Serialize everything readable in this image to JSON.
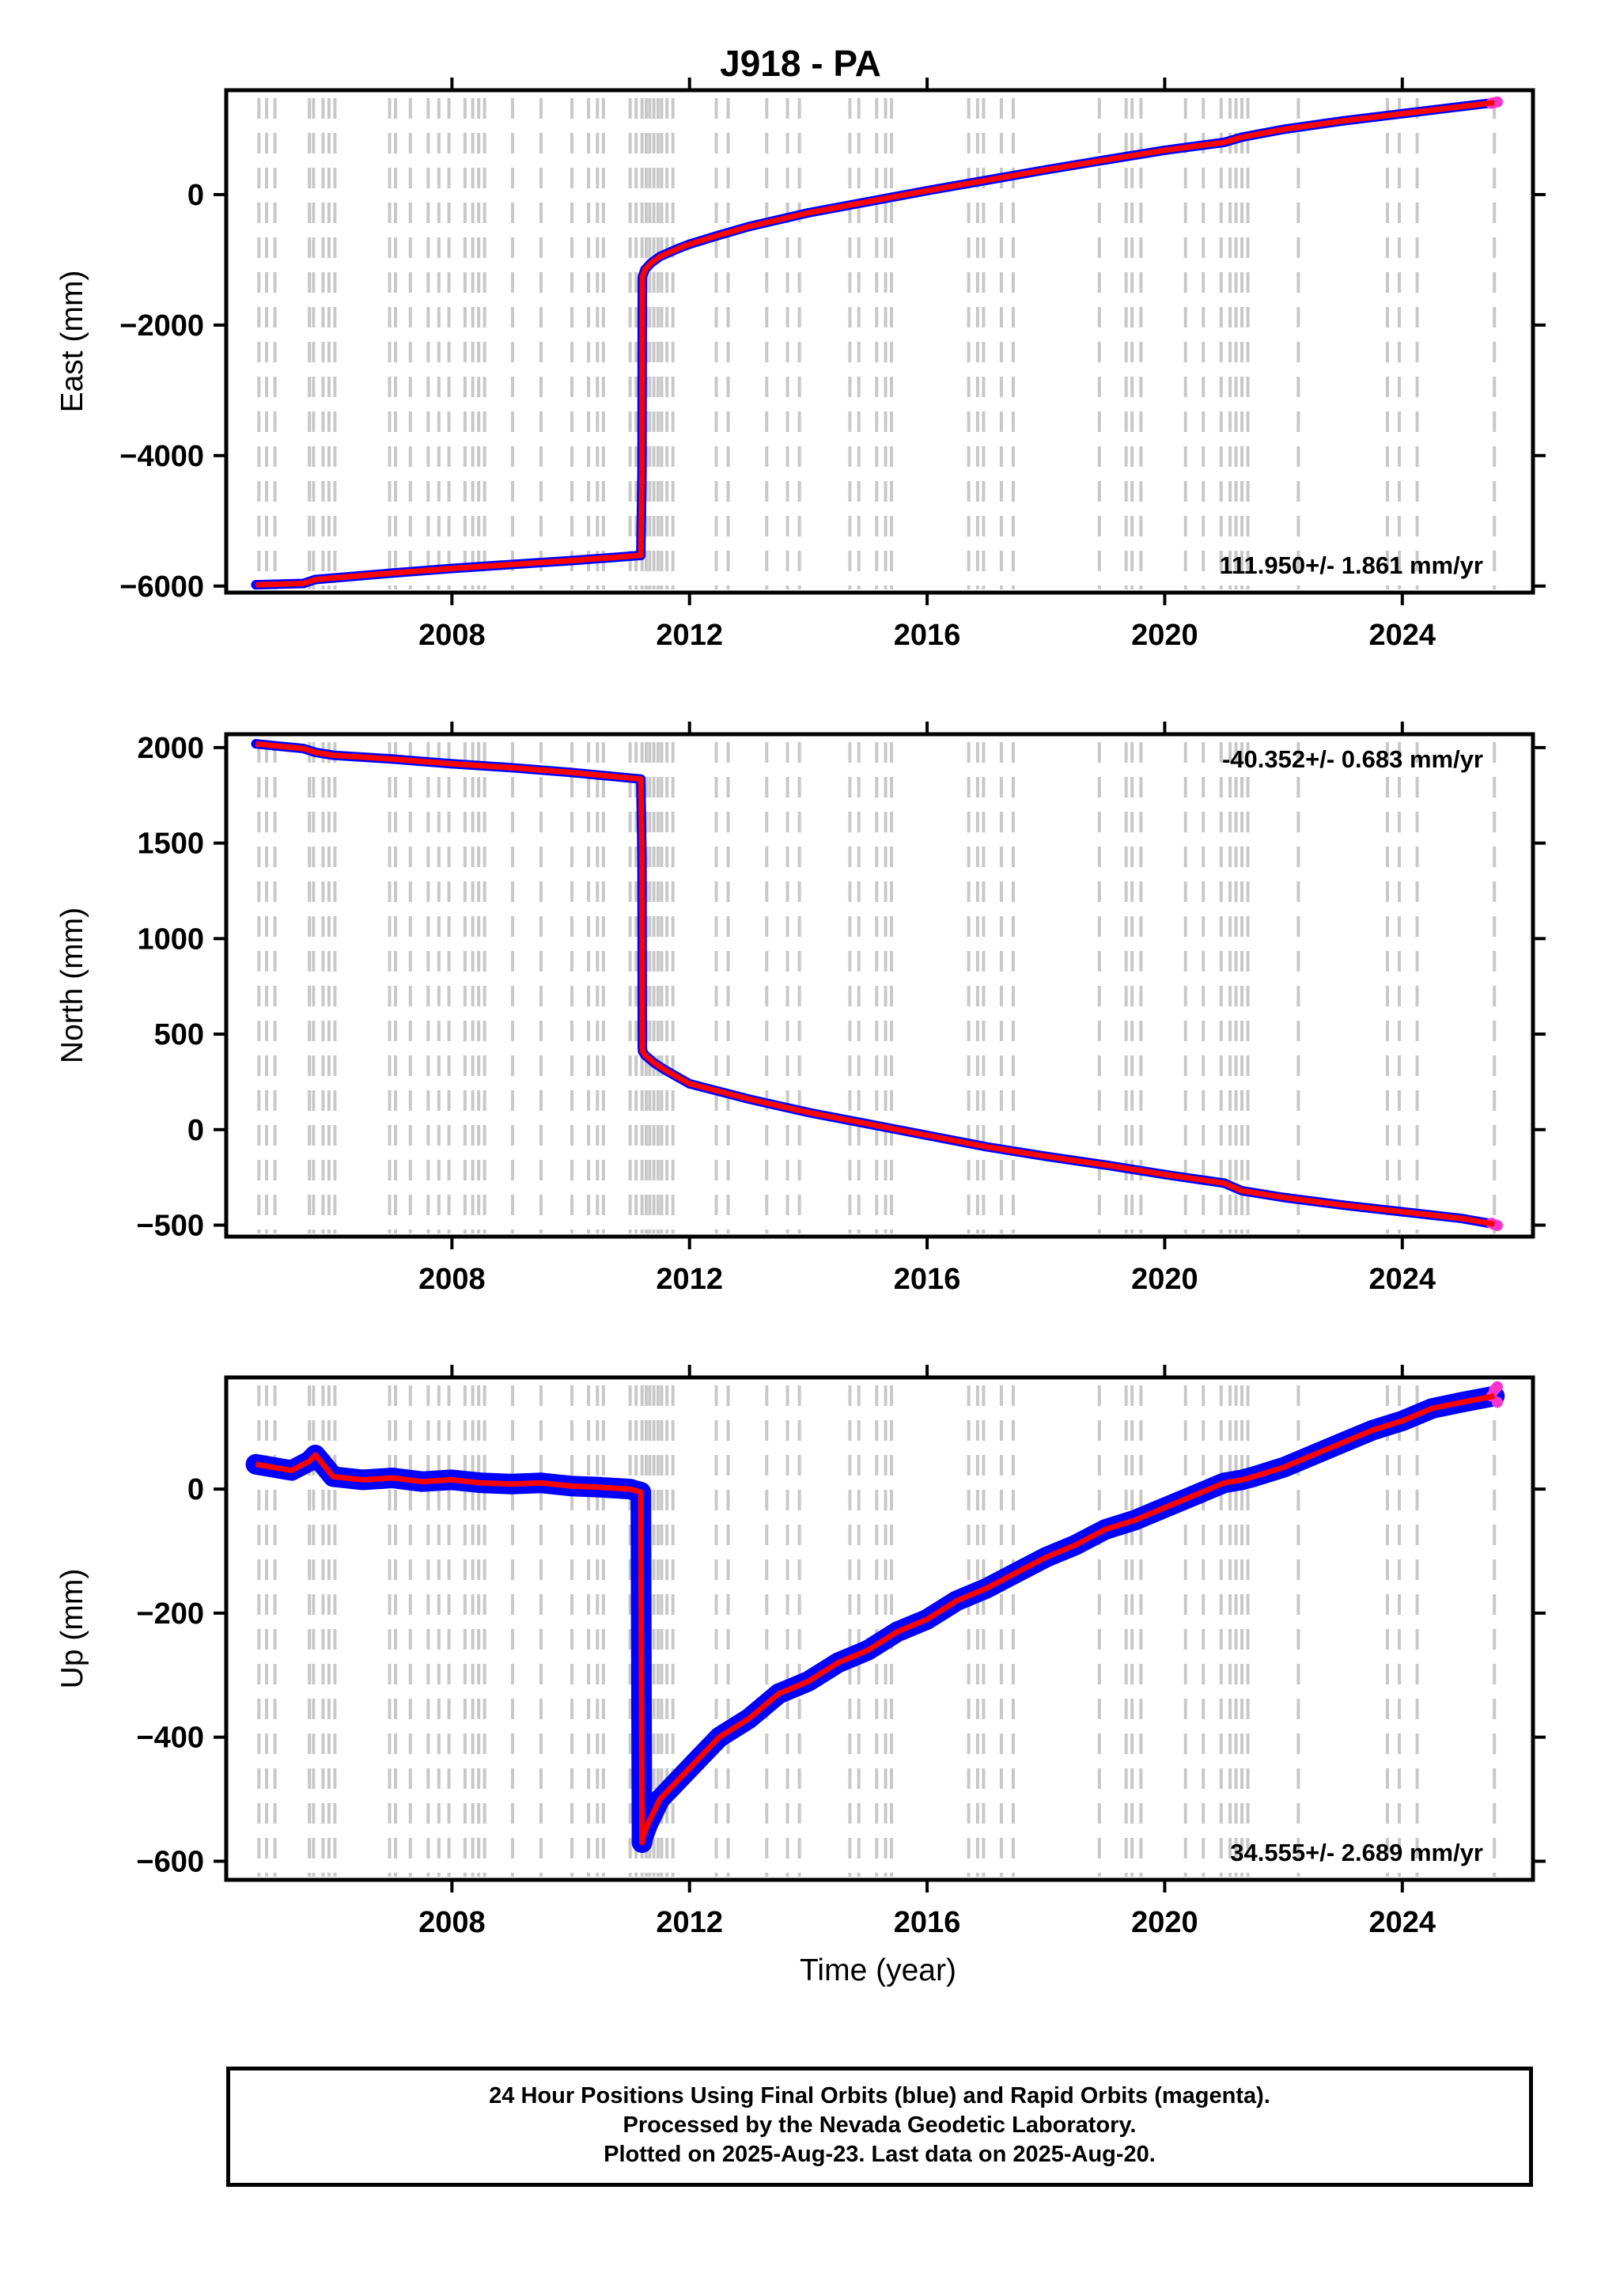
{
  "title": "J918 - PA",
  "xlabel": "Time (year)",
  "caption": {
    "line1": "24 Hour Positions Using Final Orbits (blue) and Rapid Orbits (magenta).",
    "line2": "Processed by the Nevada Geodetic Laboratory.",
    "line3": "Plotted on 2025-Aug-23. Last data on 2025-Aug-20."
  },
  "colors": {
    "final": "#0000ff",
    "rapid": "#ff33cc",
    "model": "#ff0000",
    "event_lines": "#c8c8c8",
    "axis": "#000000"
  },
  "chart_data": [
    {
      "type": "scatter",
      "panel": "east",
      "ylabel": "East (mm)",
      "xlim": [
        2004.2,
        2026.2
      ],
      "ylim": [
        -6100,
        1600
      ],
      "xticks": [
        2008,
        2012,
        2016,
        2020,
        2024
      ],
      "yticks": [
        -6000,
        -4000,
        -2000,
        0
      ],
      "ytick_labels": [
        "−6000",
        "−4000",
        "−2000",
        "0"
      ],
      "rate_label": "111.950+/- 1.861 mm/yr",
      "rate_label_position": "bottom-right",
      "series": [
        {
          "name": "Final Orbits",
          "color": "blue",
          "x": [
            2004.7,
            2005.5,
            2005.7,
            2007.0,
            2008.0,
            2009.0,
            2010.0,
            2011.18,
            2011.2,
            2011.205,
            2011.21,
            2011.25,
            2011.35,
            2011.5,
            2011.8,
            2012.0,
            2012.5,
            2013.0,
            2014.0,
            2015.0,
            2016.0,
            2017.0,
            2018.0,
            2019.0,
            2020.0,
            2021.0,
            2021.3,
            2022.0,
            2023.0,
            2024.0,
            2025.0,
            2025.55
          ],
          "y": [
            -5980,
            -5960,
            -5900,
            -5800,
            -5730,
            -5670,
            -5610,
            -5530,
            -4250,
            -1300,
            -1250,
            -1150,
            -1050,
            -950,
            -830,
            -760,
            -620,
            -490,
            -280,
            -110,
            60,
            220,
            380,
            530,
            680,
            800,
            880,
            1000,
            1130,
            1240,
            1350,
            1410
          ]
        },
        {
          "name": "Rapid Orbits",
          "color": "magenta",
          "x": [
            2025.5,
            2025.55,
            2025.6
          ],
          "y": [
            1400,
            1410,
            1420
          ]
        }
      ]
    },
    {
      "type": "scatter",
      "panel": "north",
      "ylabel": "North (mm)",
      "xlim": [
        2004.2,
        2026.2
      ],
      "ylim": [
        -560,
        2070
      ],
      "xticks": [
        2008,
        2012,
        2016,
        2020,
        2024
      ],
      "yticks": [
        -500,
        0,
        500,
        1000,
        1500,
        2000
      ],
      "ytick_labels": [
        "−500",
        "0",
        "500",
        "1000",
        "1500",
        "2000"
      ],
      "rate_label": "-40.352+/- 0.683 mm/yr",
      "rate_label_position": "top-right",
      "series": [
        {
          "name": "Final Orbits",
          "color": "blue",
          "x": [
            2004.7,
            2005.0,
            2005.5,
            2005.7,
            2006.0,
            2007.0,
            2008.0,
            2009.0,
            2010.0,
            2011.18,
            2011.2,
            2011.205,
            2011.21,
            2011.25,
            2011.4,
            2011.6,
            2011.8,
            2012.0,
            2012.5,
            2013.0,
            2014.0,
            2015.0,
            2016.0,
            2017.0,
            2018.0,
            2019.0,
            2020.0,
            2021.0,
            2021.3,
            2022.0,
            2023.0,
            2024.0,
            2025.0,
            2025.55
          ],
          "y": [
            2020,
            2010,
            1995,
            1975,
            1960,
            1940,
            1915,
            1895,
            1870,
            1835,
            1420,
            430,
            410,
            390,
            350,
            310,
            275,
            240,
            200,
            160,
            90,
            30,
            -30,
            -90,
            -140,
            -185,
            -235,
            -280,
            -320,
            -355,
            -395,
            -430,
            -465,
            -495
          ]
        },
        {
          "name": "Rapid Orbits",
          "color": "magenta",
          "x": [
            2025.5,
            2025.55,
            2025.6
          ],
          "y": [
            -490,
            -497,
            -502
          ]
        }
      ]
    },
    {
      "type": "scatter",
      "panel": "up",
      "ylabel": "Up (mm)",
      "xlim": [
        2004.2,
        2026.2
      ],
      "ylim": [
        -630,
        180
      ],
      "xticks": [
        2008,
        2012,
        2016,
        2020,
        2024
      ],
      "yticks": [
        -600,
        -400,
        -200,
        0
      ],
      "ytick_labels": [
        "−600",
        "−400",
        "−200",
        "0"
      ],
      "rate_label": "34.555+/- 2.689 mm/yr",
      "rate_label_position": "bottom-right",
      "series": [
        {
          "name": "Final Orbits",
          "color": "blue",
          "x": [
            2004.7,
            2005.0,
            2005.3,
            2005.6,
            2005.7,
            2006.0,
            2006.5,
            2007.0,
            2007.5,
            2008.0,
            2008.5,
            2009.0,
            2009.5,
            2010.0,
            2010.5,
            2011.0,
            2011.18,
            2011.2,
            2011.22,
            2011.3,
            2011.5,
            2011.8,
            2012.0,
            2012.5,
            2013.0,
            2013.5,
            2014.0,
            2014.5,
            2015.0,
            2015.5,
            2016.0,
            2016.5,
            2017.0,
            2017.5,
            2018.0,
            2018.5,
            2019.0,
            2019.5,
            2020.0,
            2020.5,
            2021.0,
            2021.3,
            2021.5,
            2022.0,
            2022.5,
            2023.0,
            2023.5,
            2024.0,
            2024.5,
            2025.0,
            2025.55
          ],
          "y": [
            40,
            35,
            30,
            45,
            55,
            20,
            15,
            18,
            12,
            15,
            10,
            8,
            10,
            5,
            3,
            0,
            -5,
            -570,
            -560,
            -540,
            -500,
            -470,
            -450,
            -400,
            -370,
            -330,
            -310,
            -280,
            -260,
            -230,
            -210,
            -180,
            -160,
            -135,
            -110,
            -90,
            -65,
            -50,
            -30,
            -10,
            10,
            15,
            20,
            35,
            55,
            75,
            95,
            110,
            130,
            140,
            150
          ]
        },
        {
          "name": "Rapid Orbits",
          "color": "magenta",
          "x": [
            2025.5,
            2025.55,
            2025.6,
            2025.6
          ],
          "y": [
            150,
            160,
            140,
            165
          ]
        }
      ]
    }
  ],
  "event_lines_x": [
    2004.75,
    2004.88,
    2005.02,
    2005.6,
    2005.67,
    2005.83,
    2005.93,
    2006.03,
    2006.95,
    2007.05,
    2007.3,
    2007.6,
    2007.78,
    2007.95,
    2008.22,
    2008.35,
    2008.45,
    2008.55,
    2009.02,
    2009.5,
    2010.02,
    2010.3,
    2010.45,
    2010.55,
    2011.0,
    2011.1,
    2011.2,
    2011.27,
    2011.33,
    2011.4,
    2011.47,
    2011.53,
    2011.62,
    2011.72,
    2012.45,
    2012.65,
    2013.3,
    2013.65,
    2013.85,
    2014.7,
    2014.85,
    2015.15,
    2015.3,
    2015.4,
    2016.7,
    2016.85,
    2016.95,
    2017.25,
    2017.45,
    2018.9,
    2019.35,
    2019.45,
    2019.6,
    2020.35,
    2020.65,
    2020.95,
    2021.1,
    2021.2,
    2021.3,
    2021.4,
    2022.25,
    2023.75,
    2023.95,
    2024.25,
    2025.55
  ]
}
